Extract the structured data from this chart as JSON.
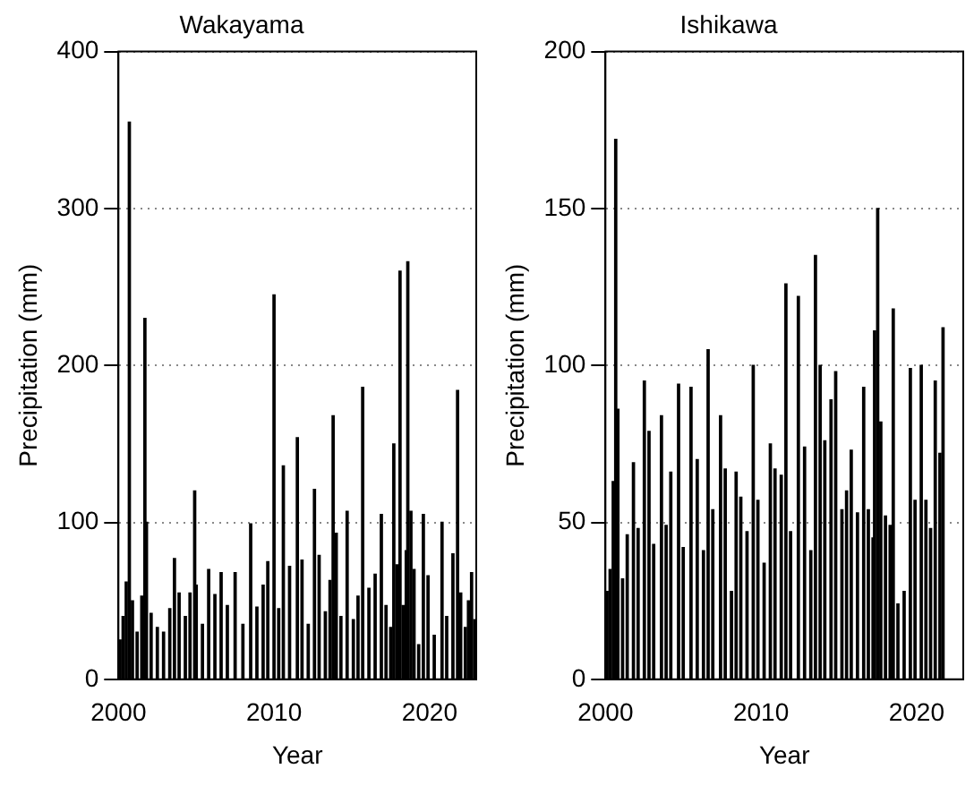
{
  "chart_data": [
    {
      "type": "bar",
      "title": "Wakayama",
      "xlabel": "Year",
      "ylabel": "Precipitation (mm)",
      "color": "#000000",
      "xlim": [
        2000,
        2023
      ],
      "xticks": [
        2000,
        2010,
        2020
      ],
      "ylim": [
        0,
        400
      ],
      "yticks": [
        0,
        100,
        200,
        300,
        400
      ],
      "grid": "y",
      "x": [
        2000.1,
        2000.3,
        2000.5,
        2000.7,
        2000.9,
        2001.2,
        2001.5,
        2001.7,
        2001.8,
        2002.1,
        2002.5,
        2002.9,
        2003.3,
        2003.6,
        2003.9,
        2004.3,
        2004.6,
        2004.9,
        2005.0,
        2005.4,
        2005.8,
        2006.2,
        2006.6,
        2007.0,
        2007.5,
        2008.0,
        2008.5,
        2008.9,
        2009.3,
        2009.6,
        2010.0,
        2010.3,
        2010.6,
        2011.0,
        2011.5,
        2011.8,
        2012.2,
        2012.6,
        2012.9,
        2013.3,
        2013.6,
        2013.8,
        2014.0,
        2014.3,
        2014.7,
        2015.1,
        2015.4,
        2015.7,
        2016.1,
        2016.5,
        2016.9,
        2017.2,
        2017.5,
        2017.7,
        2017.9,
        2018.1,
        2018.3,
        2018.5,
        2018.6,
        2018.8,
        2019.0,
        2019.3,
        2019.6,
        2019.9,
        2020.3,
        2020.8,
        2021.1,
        2021.5,
        2021.8,
        2022.0,
        2022.3,
        2022.5,
        2022.7,
        2022.9
      ],
      "values": [
        25,
        40,
        62,
        355,
        50,
        30,
        53,
        230,
        100,
        42,
        33,
        30,
        45,
        77,
        55,
        40,
        55,
        120,
        60,
        35,
        70,
        54,
        68,
        47,
        68,
        35,
        99,
        46,
        60,
        75,
        245,
        45,
        136,
        72,
        154,
        76,
        35,
        121,
        79,
        43,
        63,
        168,
        93,
        40,
        107,
        38,
        53,
        186,
        58,
        67,
        105,
        47,
        33,
        150,
        73,
        260,
        47,
        82,
        266,
        107,
        70,
        22,
        105,
        66,
        28,
        100,
        40,
        80,
        184,
        55,
        33,
        50,
        68,
        38
      ]
    },
    {
      "type": "bar",
      "title": "Ishikawa",
      "xlabel": "Year",
      "ylabel": "Precipitation (mm)",
      "color": "#000000",
      "xlim": [
        2000,
        2023
      ],
      "xticks": [
        2000,
        2010,
        2020
      ],
      "ylim": [
        0,
        200
      ],
      "yticks": [
        0,
        50,
        100,
        150,
        200
      ],
      "grid": "y",
      "x": [
        2000.1,
        2000.3,
        2000.5,
        2000.66,
        2000.8,
        2001.1,
        2001.4,
        2001.8,
        2002.1,
        2002.5,
        2002.8,
        2003.1,
        2003.6,
        2003.9,
        2004.2,
        2004.7,
        2005.0,
        2005.5,
        2005.9,
        2006.3,
        2006.6,
        2006.9,
        2007.4,
        2007.7,
        2008.1,
        2008.4,
        2008.7,
        2009.1,
        2009.5,
        2009.8,
        2010.2,
        2010.6,
        2010.9,
        2011.3,
        2011.6,
        2011.9,
        2012.4,
        2012.8,
        2013.2,
        2013.5,
        2013.8,
        2014.1,
        2014.5,
        2014.8,
        2015.2,
        2015.5,
        2015.8,
        2016.2,
        2016.6,
        2016.9,
        2017.2,
        2017.3,
        2017.5,
        2017.7,
        2018.0,
        2018.3,
        2018.5,
        2018.8,
        2019.2,
        2019.6,
        2019.9,
        2020.3,
        2020.6,
        2020.9,
        2021.2,
        2021.5,
        2021.7
      ],
      "values": [
        28,
        35,
        63,
        172,
        86,
        32,
        46,
        69,
        48,
        95,
        79,
        43,
        84,
        49,
        66,
        94,
        42,
        93,
        70,
        41,
        105,
        54,
        84,
        67,
        28,
        66,
        58,
        47,
        100,
        57,
        37,
        75,
        67,
        65,
        126,
        47,
        122,
        74,
        41,
        135,
        100,
        76,
        89,
        98,
        54,
        60,
        73,
        53,
        93,
        54,
        45,
        111,
        150,
        82,
        52,
        49,
        118,
        24,
        28,
        99,
        57,
        100,
        57,
        48,
        95,
        72,
        112
      ]
    }
  ]
}
